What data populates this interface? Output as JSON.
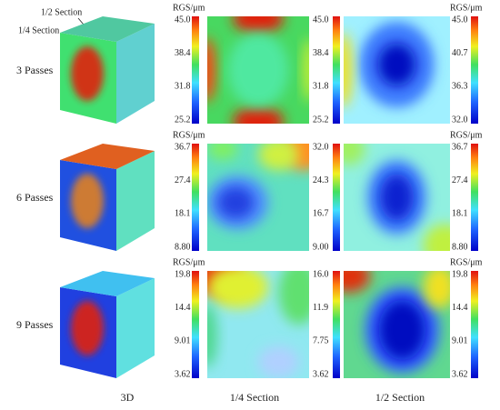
{
  "annotations": [
    "1/2 Section",
    "1/4 Section"
  ],
  "columns": [
    "3D",
    "1/4 Section",
    "1/2 Section"
  ],
  "rows": [
    {
      "label": "3 Passes",
      "colorbars": [
        {
          "unit": "RGS/μm",
          "ticks": [
            "45.0",
            "38.4",
            "31.8",
            "25.2"
          ]
        },
        {
          "ticks": [
            "45.0",
            "38.4",
            "31.8",
            "25.2"
          ]
        },
        {
          "unit": "RGS/μm",
          "ticks": [
            "45.0",
            "40.7",
            "36.3",
            "32.0"
          ]
        }
      ]
    },
    {
      "label": "6 Passes",
      "colorbars": [
        {
          "unit": "RGS/μm",
          "ticks": [
            "36.7",
            "27.4",
            "18.1",
            "8.80"
          ]
        },
        {
          "ticks": [
            "32.0",
            "24.3",
            "16.7",
            "9.00"
          ]
        },
        {
          "unit": "RGS/μm",
          "ticks": [
            "36.7",
            "27.4",
            "18.1",
            "8.80"
          ]
        }
      ]
    },
    {
      "label": "9 Passes",
      "colorbars": [
        {
          "unit": "RGS/μm",
          "ticks": [
            "19.8",
            "14.4",
            "9.01",
            "3.62"
          ]
        },
        {
          "ticks": [
            "16.0",
            "11.9",
            "7.75",
            "3.62"
          ]
        },
        {
          "unit": "RGS/μm",
          "ticks": [
            "19.8",
            "14.4",
            "9.01",
            "3.62"
          ]
        }
      ]
    }
  ]
}
